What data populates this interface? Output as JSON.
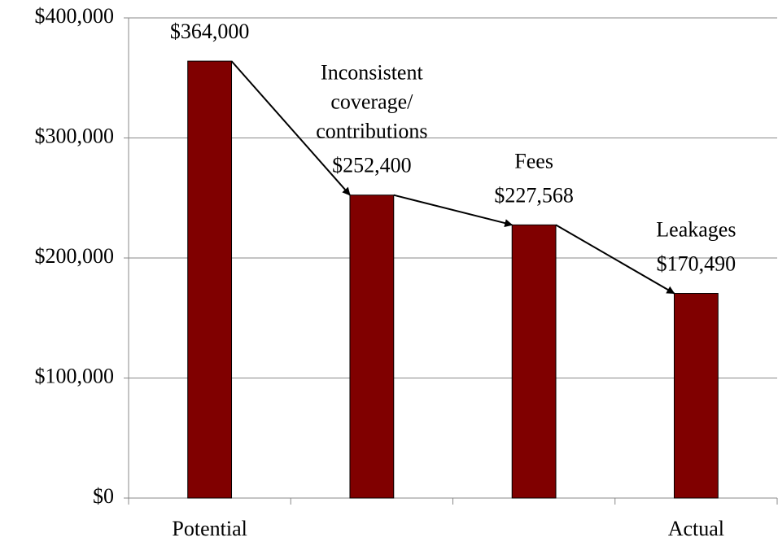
{
  "chart_data": {
    "type": "bar",
    "categories": [
      "Potential",
      null,
      null,
      "Actual"
    ],
    "values": [
      364000,
      252400,
      227568,
      170490
    ],
    "value_labels": [
      "$364,000",
      "$252,400",
      "$227,568",
      "$170,490"
    ],
    "color": "#800000",
    "annotations": [
      [
        "Inconsistent",
        "coverage/",
        "contributions"
      ],
      [
        "Fees"
      ],
      [
        "Leakages"
      ]
    ],
    "ylim": [
      0,
      400000
    ],
    "yticks": [
      {
        "value": 0,
        "label": "$0"
      },
      {
        "value": 100000,
        "label": "$100,000"
      },
      {
        "value": 200000,
        "label": "$200,000"
      },
      {
        "value": 300000,
        "label": "$300,000"
      },
      {
        "value": 400000,
        "label": "$400,000"
      }
    ],
    "grid": true
  }
}
